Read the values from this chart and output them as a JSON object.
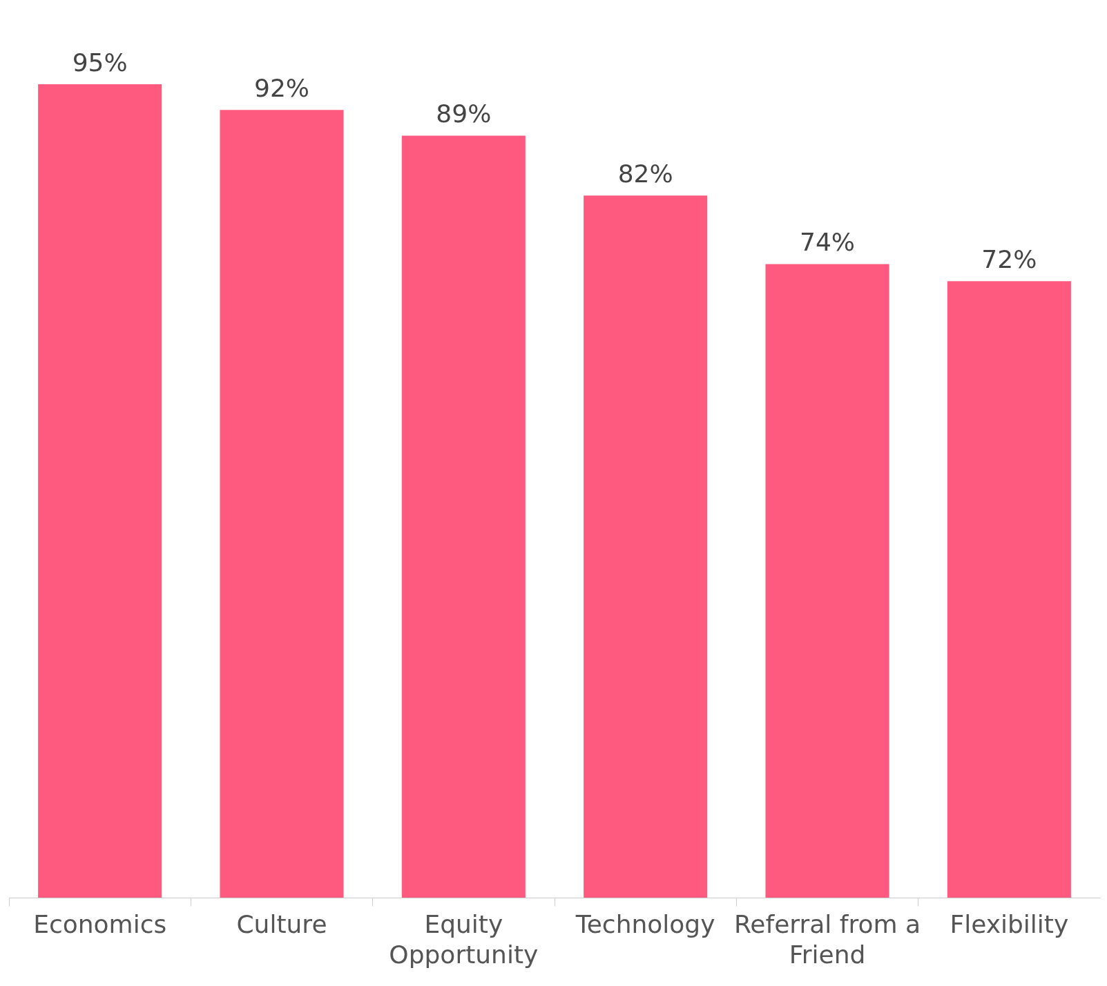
{
  "chart_data": {
    "type": "bar",
    "categories": [
      "Economics",
      "Culture",
      "Equity Opportunity",
      "Technology",
      "Referral from a Friend",
      "Flexibility"
    ],
    "values": [
      95,
      92,
      89,
      82,
      74,
      72
    ],
    "value_labels": [
      "95%",
      "92%",
      "89%",
      "82%",
      "74%",
      "72%"
    ],
    "color": "#fe5a7f"
  }
}
